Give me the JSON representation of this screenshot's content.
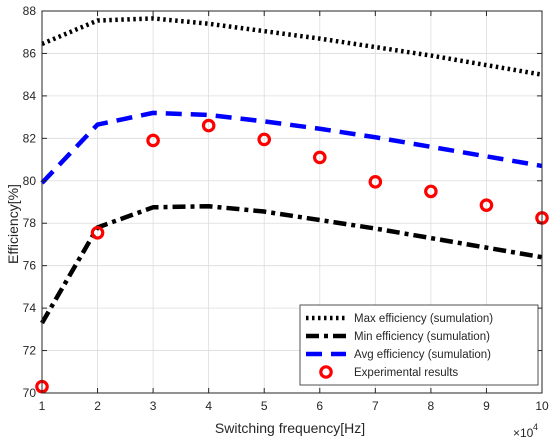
{
  "chart_data": {
    "type": "line",
    "xlabel": "Switching frequency[Hz]",
    "ylabel": "Efficiency[%]",
    "x_multiplier_label": "×10",
    "x_multiplier_exp": "4",
    "xlim": [
      1,
      10
    ],
    "ylim": [
      70,
      88
    ],
    "x_ticks": [
      1,
      2,
      3,
      4,
      5,
      6,
      7,
      8,
      9,
      10
    ],
    "y_ticks": [
      70,
      72,
      74,
      76,
      78,
      80,
      82,
      84,
      86,
      88
    ],
    "grid": true,
    "legend_position": "bottom-right",
    "series": [
      {
        "name": "Max efficiency (sumulation)",
        "style": "dotted",
        "color": "#000000",
        "x": [
          1,
          2,
          3,
          4,
          5,
          6,
          7,
          8,
          9,
          10
        ],
        "y": [
          86.45,
          87.55,
          87.65,
          87.4,
          87.05,
          86.7,
          86.3,
          85.9,
          85.45,
          85.0
        ]
      },
      {
        "name": "Min efficiency (sumulation)",
        "style": "dashdot",
        "color": "#000000",
        "x": [
          1,
          2,
          3,
          4,
          5,
          6,
          7,
          8,
          9,
          10
        ],
        "y": [
          73.3,
          77.8,
          78.75,
          78.8,
          78.55,
          78.15,
          77.75,
          77.3,
          76.85,
          76.4
        ]
      },
      {
        "name": "Avg efficiency (sumulation)",
        "style": "dashed",
        "color": "#0000ff",
        "x": [
          1,
          2,
          3,
          4,
          5,
          6,
          7,
          8,
          9,
          10
        ],
        "y": [
          79.9,
          82.65,
          83.2,
          83.1,
          82.8,
          82.45,
          82.05,
          81.6,
          81.15,
          80.7
        ]
      },
      {
        "name": "Experimental results",
        "style": "markers",
        "color": "#ff0000",
        "x": [
          1,
          2,
          3,
          4,
          5,
          6,
          7,
          8,
          9,
          10
        ],
        "y": [
          70.3,
          77.55,
          81.9,
          82.6,
          81.95,
          81.1,
          79.95,
          79.5,
          78.85,
          78.25
        ]
      }
    ]
  }
}
